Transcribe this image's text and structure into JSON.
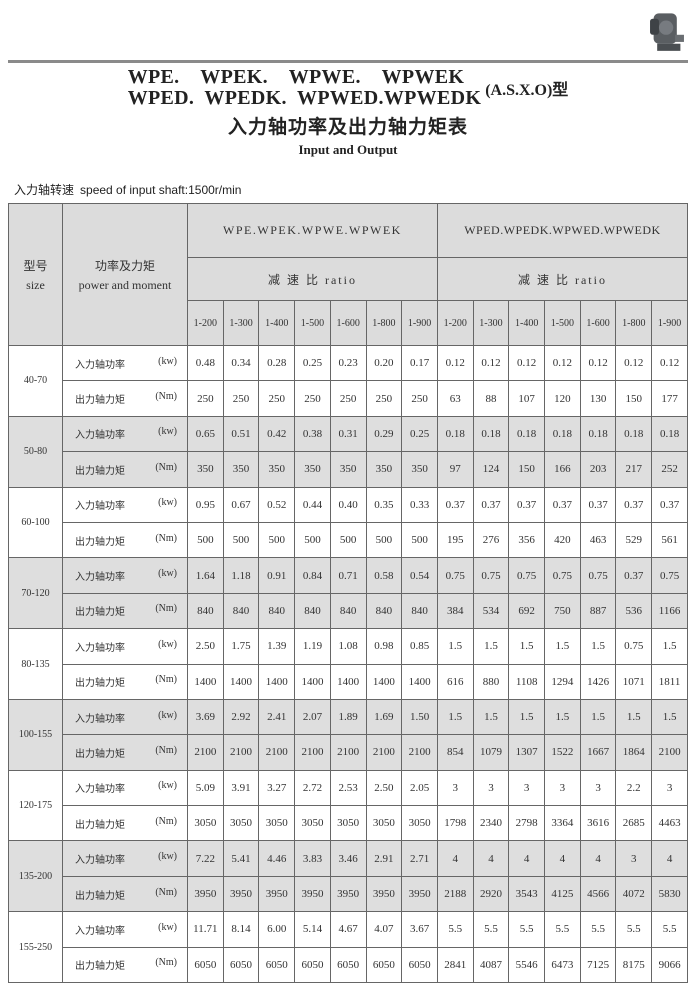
{
  "title": {
    "line1": "WPE.    WPEK.    WPWE.    WPWEK",
    "line2": "WPED.  WPEDK.  WPWED.WPWEDK",
    "suffix": "(A.S.X.O)型",
    "cn": "入力轴功率及出力轴力矩表",
    "en": "Input and Output"
  },
  "speed": {
    "cn": "入力轴转速",
    "en": "speed of input shaft:1500r/min"
  },
  "header": {
    "size_cn": "型号",
    "size_en": "size",
    "pm_cn": "功率及力矩",
    "pm_en": "power and moment",
    "group1": "WPE.WPEK.WPWE.WPWEK",
    "group2": "WPED.WPEDK.WPWED.WPWEDK",
    "ratio": "减 速 比 ratio",
    "ratios": [
      "1-200",
      "1-300",
      "1-400",
      "1-500",
      "1-600",
      "1-800",
      "1-900",
      "1-200",
      "1-300",
      "1-400",
      "1-500",
      "1-600",
      "1-800",
      "1-900"
    ]
  },
  "labels": {
    "power": "入力轴功率",
    "power_unit": "(kw)",
    "torque": "出力轴力矩",
    "torque_unit": "(Nm)"
  },
  "rows": [
    {
      "size": "40-70",
      "power": [
        "0.48",
        "0.34",
        "0.28",
        "0.25",
        "0.23",
        "0.20",
        "0.17",
        "0.12",
        "0.12",
        "0.12",
        "0.12",
        "0.12",
        "0.12",
        "0.12"
      ],
      "torque": [
        "250",
        "250",
        "250",
        "250",
        "250",
        "250",
        "250",
        "63",
        "88",
        "107",
        "120",
        "130",
        "150",
        "177"
      ]
    },
    {
      "size": "50-80",
      "power": [
        "0.65",
        "0.51",
        "0.42",
        "0.38",
        "0.31",
        "0.29",
        "0.25",
        "0.18",
        "0.18",
        "0.18",
        "0.18",
        "0.18",
        "0.18",
        "0.18"
      ],
      "torque": [
        "350",
        "350",
        "350",
        "350",
        "350",
        "350",
        "350",
        "97",
        "124",
        "150",
        "166",
        "203",
        "217",
        "252"
      ]
    },
    {
      "size": "60-100",
      "power": [
        "0.95",
        "0.67",
        "0.52",
        "0.44",
        "0.40",
        "0.35",
        "0.33",
        "0.37",
        "0.37",
        "0.37",
        "0.37",
        "0.37",
        "0.37",
        "0.37"
      ],
      "torque": [
        "500",
        "500",
        "500",
        "500",
        "500",
        "500",
        "500",
        "195",
        "276",
        "356",
        "420",
        "463",
        "529",
        "561"
      ]
    },
    {
      "size": "70-120",
      "power": [
        "1.64",
        "1.18",
        "0.91",
        "0.84",
        "0.71",
        "0.58",
        "0.54",
        "0.75",
        "0.75",
        "0.75",
        "0.75",
        "0.75",
        "0.37",
        "0.75"
      ],
      "torque": [
        "840",
        "840",
        "840",
        "840",
        "840",
        "840",
        "840",
        "384",
        "534",
        "692",
        "750",
        "887",
        "536",
        "1166"
      ]
    },
    {
      "size": "80-135",
      "power": [
        "2.50",
        "1.75",
        "1.39",
        "1.19",
        "1.08",
        "0.98",
        "0.85",
        "1.5",
        "1.5",
        "1.5",
        "1.5",
        "1.5",
        "0.75",
        "1.5"
      ],
      "torque": [
        "1400",
        "1400",
        "1400",
        "1400",
        "1400",
        "1400",
        "1400",
        "616",
        "880",
        "1108",
        "1294",
        "1426",
        "1071",
        "1811"
      ]
    },
    {
      "size": "100-155",
      "power": [
        "3.69",
        "2.92",
        "2.41",
        "2.07",
        "1.89",
        "1.69",
        "1.50",
        "1.5",
        "1.5",
        "1.5",
        "1.5",
        "1.5",
        "1.5",
        "1.5"
      ],
      "torque": [
        "2100",
        "2100",
        "2100",
        "2100",
        "2100",
        "2100",
        "2100",
        "854",
        "1079",
        "1307",
        "1522",
        "1667",
        "1864",
        "2100"
      ]
    },
    {
      "size": "120-175",
      "power": [
        "5.09",
        "3.91",
        "3.27",
        "2.72",
        "2.53",
        "2.50",
        "2.05",
        "3",
        "3",
        "3",
        "3",
        "3",
        "2.2",
        "3"
      ],
      "torque": [
        "3050",
        "3050",
        "3050",
        "3050",
        "3050",
        "3050",
        "3050",
        "1798",
        "2340",
        "2798",
        "3364",
        "3616",
        "2685",
        "4463"
      ]
    },
    {
      "size": "135-200",
      "power": [
        "7.22",
        "5.41",
        "4.46",
        "3.83",
        "3.46",
        "2.91",
        "2.71",
        "4",
        "4",
        "4",
        "4",
        "4",
        "3",
        "4"
      ],
      "torque": [
        "3950",
        "3950",
        "3950",
        "3950",
        "3950",
        "3950",
        "3950",
        "2188",
        "2920",
        "3543",
        "4125",
        "4566",
        "4072",
        "5830"
      ]
    },
    {
      "size": "155-250",
      "power": [
        "11.71",
        "8.14",
        "6.00",
        "5.14",
        "4.67",
        "4.07",
        "3.67",
        "5.5",
        "5.5",
        "5.5",
        "5.5",
        "5.5",
        "5.5",
        "5.5"
      ],
      "torque": [
        "6050",
        "6050",
        "6050",
        "6050",
        "6050",
        "6050",
        "6050",
        "2841",
        "4087",
        "5546",
        "6473",
        "7125",
        "8175",
        "9066"
      ]
    }
  ]
}
